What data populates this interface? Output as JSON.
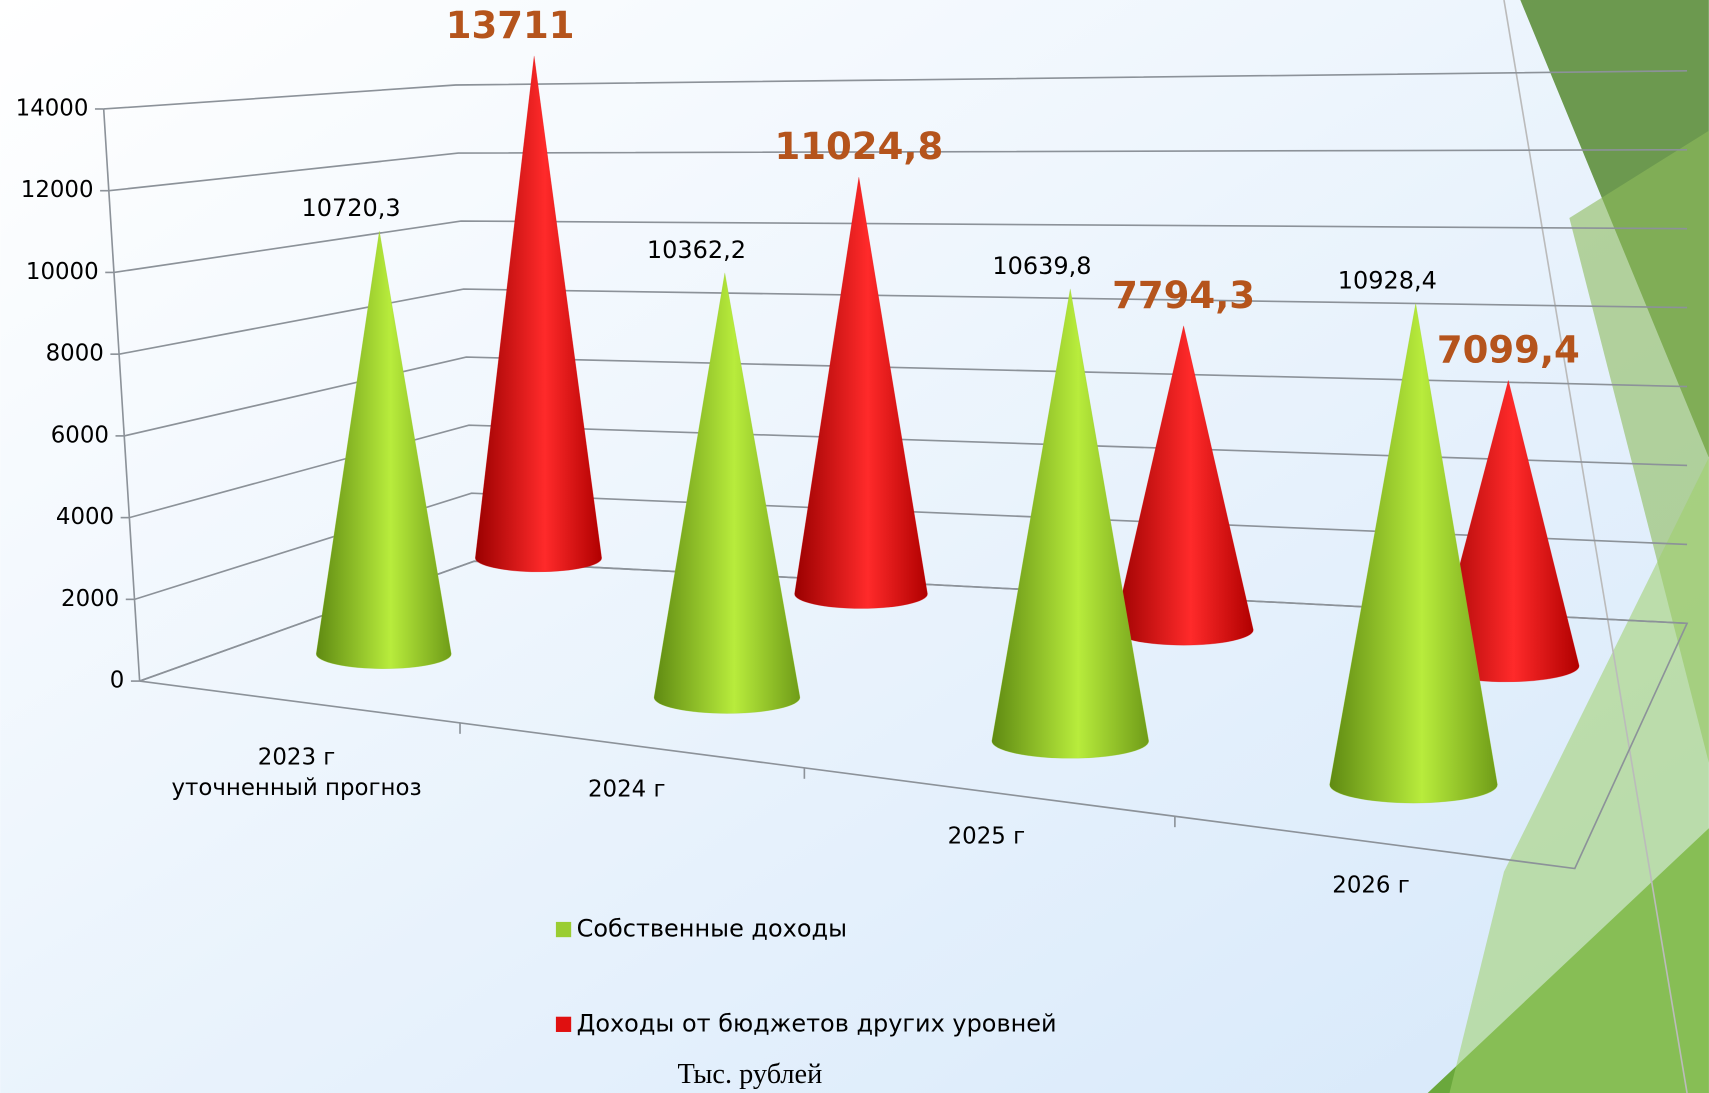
{
  "chart_data": {
    "type": "cone3d",
    "categories": [
      "2023 г\nуточненный прогноз",
      "2024 г",
      "2025 г",
      "2026 г"
    ],
    "series": [
      {
        "name": "Собственные доходы",
        "color": "#9acd32",
        "values": [
          10720.3,
          10362.2,
          10639.8,
          10928.4
        ],
        "value_labels": [
          "10720,3",
          "10362,2",
          "10639,8",
          "10928,4"
        ]
      },
      {
        "name": "Доходы от бюджетов других уровней",
        "color": "#e01010",
        "values": [
          13711,
          11024.8,
          7794.3,
          7099.4
        ],
        "value_labels": [
          "13711",
          "11024,8",
          "7794,3",
          "7099,4"
        ]
      }
    ],
    "ylim": [
      0,
      14000
    ],
    "yticks": [
      0,
      2000,
      4000,
      6000,
      8000,
      10000,
      12000,
      14000
    ],
    "grid": true,
    "annotation": "Тыс. рублей"
  }
}
